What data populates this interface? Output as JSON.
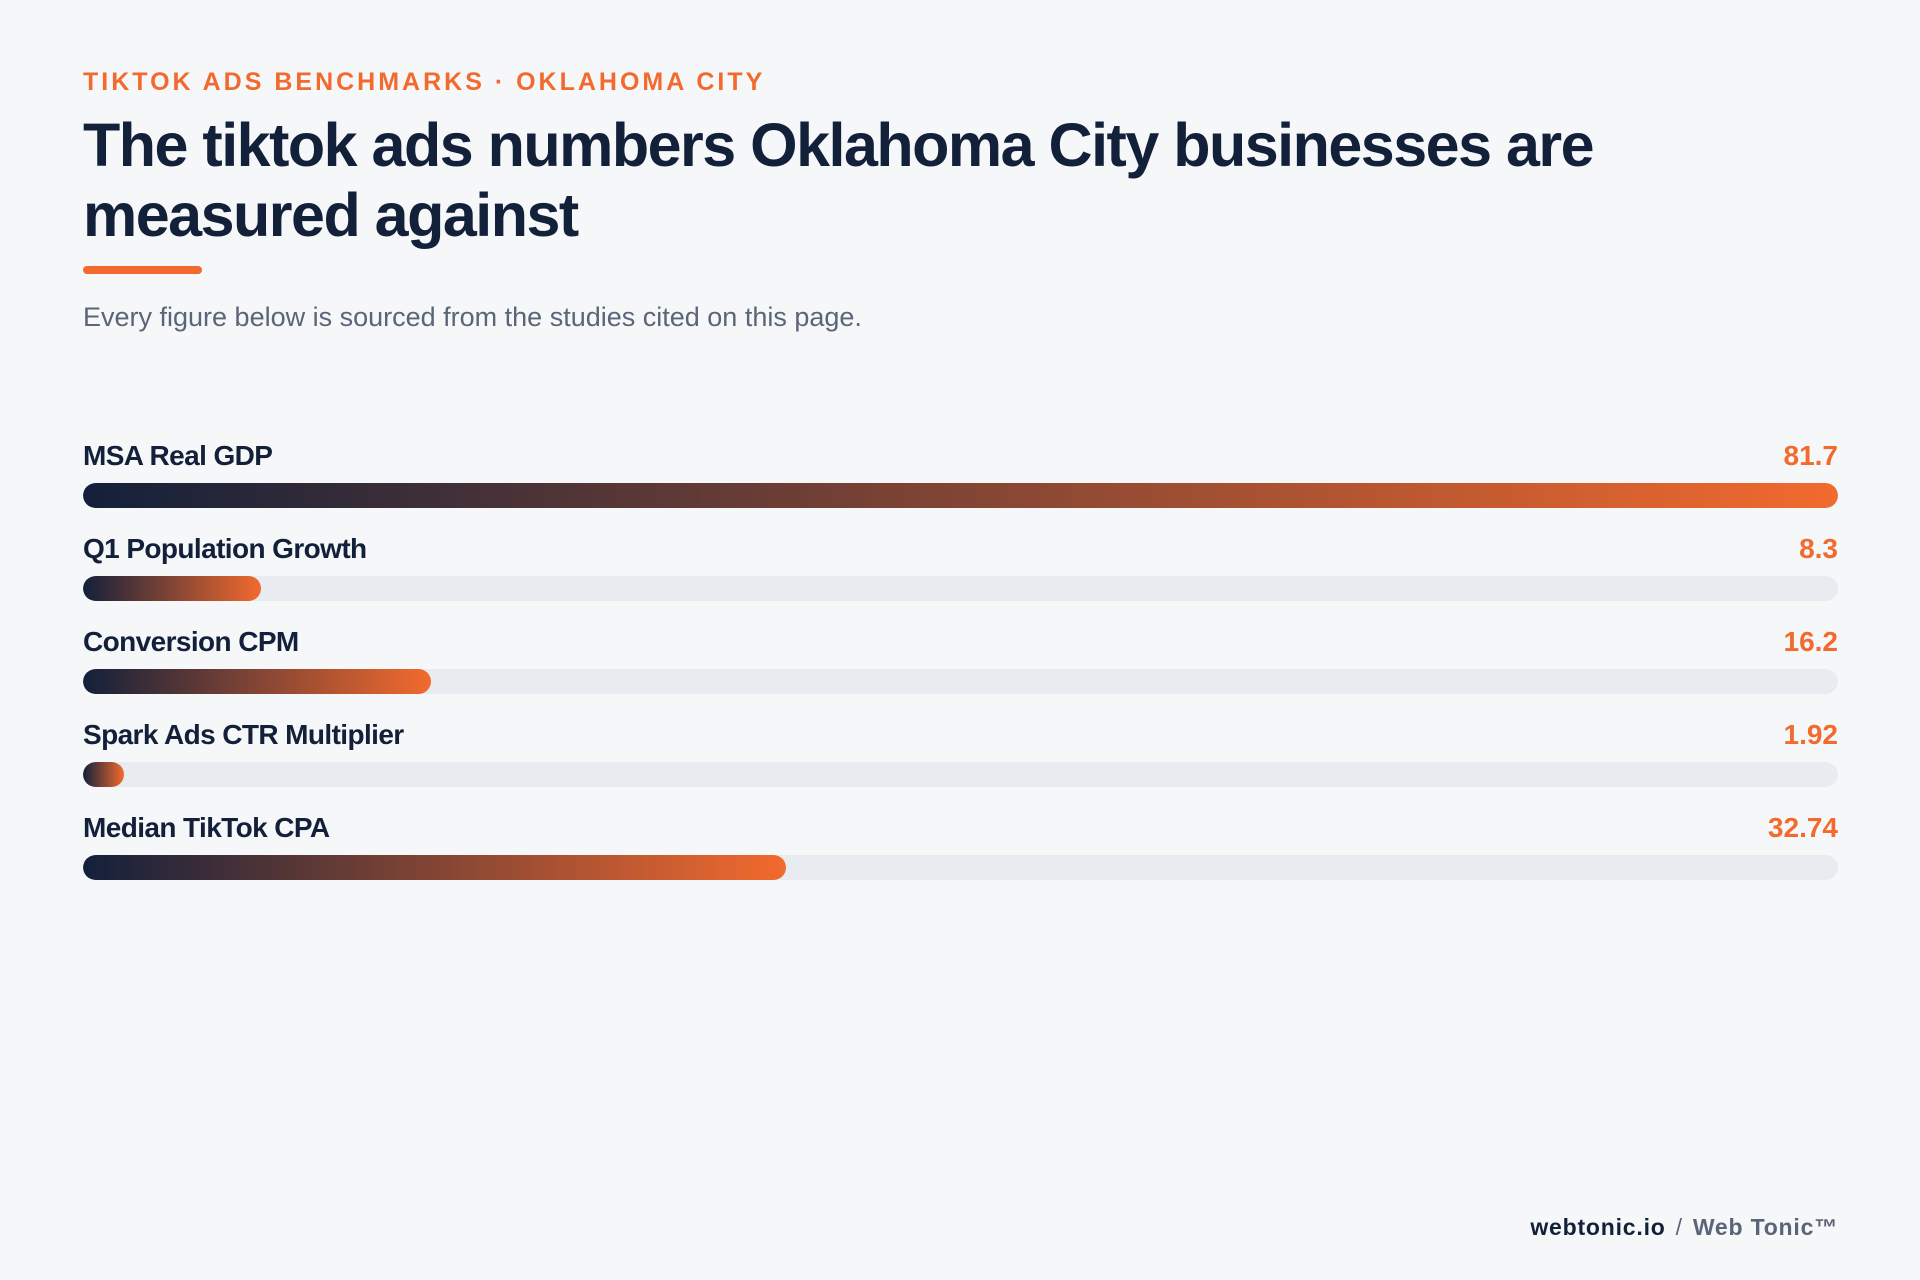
{
  "header": {
    "eyebrow": "TIKTOK ADS BENCHMARKS · OKLAHOMA CITY",
    "title": "The tiktok ads numbers Oklahoma City businesses are measured against",
    "subtitle": "Every figure below is sourced from the studies cited on this page."
  },
  "colors": {
    "accent": "#f26a2e",
    "navy": "#13203a",
    "track": "#e8ebf0",
    "background": "#f6f7f9"
  },
  "chart_data": {
    "type": "bar",
    "orientation": "horizontal",
    "categories": [
      "MSA Real GDP",
      "Q1 Population Growth",
      "Conversion CPM",
      "Spark Ads CTR Multiplier",
      "Median TikTok CPA"
    ],
    "values": [
      81.7,
      8.3,
      16.2,
      1.92,
      32.74
    ],
    "value_labels": [
      "81.7",
      "8.3",
      "16.2",
      "1.92",
      "32.74"
    ],
    "xlim": [
      0,
      81.7
    ],
    "grid": false
  },
  "footer": {
    "domain": "webtonic.io",
    "separator": "/",
    "brand": "Web Tonic™"
  }
}
